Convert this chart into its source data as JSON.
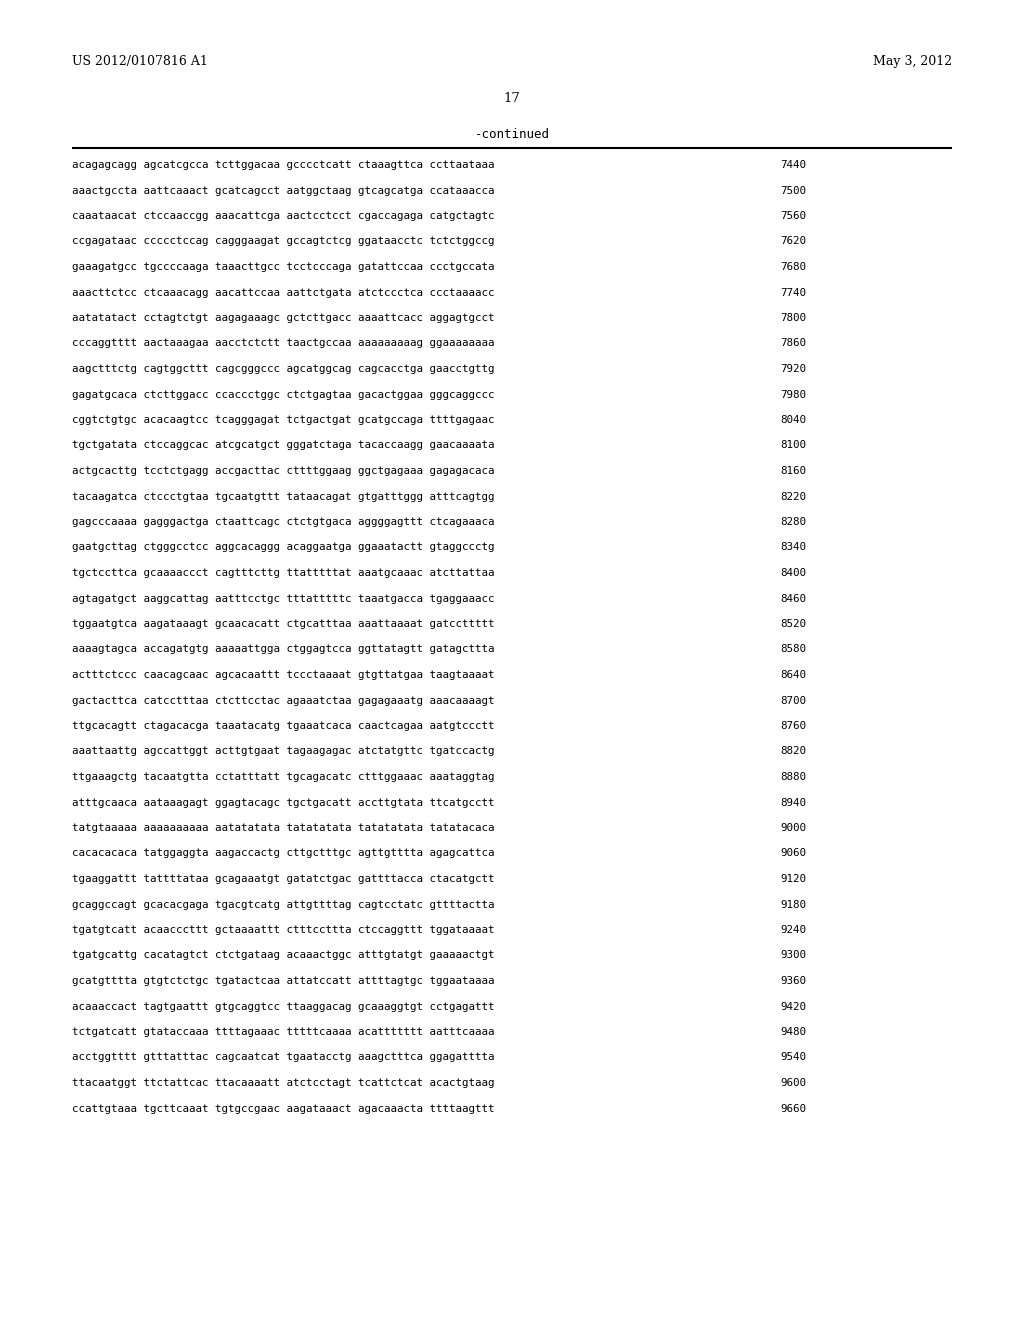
{
  "header_left": "US 2012/0107816 A1",
  "header_right": "May 3, 2012",
  "page_number": "17",
  "continued_label": "-continued",
  "background_color": "#ffffff",
  "text_color": "#000000",
  "mono_font_size": 7.8,
  "header_font_size": 9.0,
  "page_num_font_size": 9.5,
  "continued_font_size": 9.0,
  "lines": [
    [
      "acagagcagg agcatcgcca tcttggacaa gcccctcatt ctaaagttca ccttaataaa",
      "7440"
    ],
    [
      "aaactgccta aattcaaact gcatcagcct aatggctaag gtcagcatga ccataaacca",
      "7500"
    ],
    [
      "caaataacat ctccaaccgg aaacattcga aactcctcct cgaccagaga catgctagtc",
      "7560"
    ],
    [
      "ccgagataac ccccctccag cagggaagat gccagtctcg ggataacctc tctctggccg",
      "7620"
    ],
    [
      "gaaagatgcc tgccccaaga taaacttgcc tcctcccaga gatattccaa ccctgccata",
      "7680"
    ],
    [
      "aaacttctcc ctcaaacagg aacattccaa aattctgata atctccctca ccctaaaacc",
      "7740"
    ],
    [
      "aatatatact cctagtctgt aagagaaagc gctcttgacc aaaattcacc aggagtgcct",
      "7800"
    ],
    [
      "cccaggtttt aactaaagaa aacctctctt taactgccaa aaaaaaaaag ggaaaaaaaa",
      "7860"
    ],
    [
      "aagctttctg cagtggcttt cagcgggccc agcatggcag cagcacctga gaacctgttg",
      "7920"
    ],
    [
      "gagatgcaca ctcttggacc ccaccctggc ctctgagtaa gacactggaa gggcaggccc",
      "7980"
    ],
    [
      "cggtctgtgc acacaagtcc tcagggagat tctgactgat gcatgccaga ttttgagaac",
      "8040"
    ],
    [
      "tgctgatata ctccaggcac atcgcatgct gggatctaga tacaccaagg gaacaaaata",
      "8100"
    ],
    [
      "actgcacttg tcctctgagg accgacttac cttttggaag ggctgagaaa gagagacaca",
      "8160"
    ],
    [
      "tacaagatca ctccctgtaa tgcaatgttt tataacagat gtgatttggg atttcagtgg",
      "8220"
    ],
    [
      "gagcccaaaa gagggactga ctaattcagc ctctgtgaca aggggagttt ctcagaaaca",
      "8280"
    ],
    [
      "gaatgcttag ctgggcctcc aggcacaggg acaggaatga ggaaatactt gtaggccctg",
      "8340"
    ],
    [
      "tgctccttca gcaaaaccct cagtttcttg ttatttttat aaatgcaaac atcttattaa",
      "8400"
    ],
    [
      "agtagatgct aaggcattag aatttcctgc tttatttttc taaatgacca tgaggaaacc",
      "8460"
    ],
    [
      "tggaatgtca aagataaagt gcaacacatt ctgcatttaa aaattaaaat gatccttttt",
      "8520"
    ],
    [
      "aaaagtagca accagatgtg aaaaattgga ctggagtcca ggttatagtt gatagcttta",
      "8580"
    ],
    [
      "actttctccc caacagcaac agcacaattt tccctaaaat gtgttatgaa taagtaaaat",
      "8640"
    ],
    [
      "gactacttca catcctttaa ctcttcctac agaaatctaa gagagaaatg aaacaaaagt",
      "8700"
    ],
    [
      "ttgcacagtt ctagacacga taaatacatg tgaaatcaca caactcagaa aatgtccctt",
      "8760"
    ],
    [
      "aaattaattg agccattggt acttgtgaat tagaagagac atctatgttc tgatccactg",
      "8820"
    ],
    [
      "ttgaaagctg tacaatgtta cctatttatt tgcagacatc ctttggaaac aaataggtag",
      "8880"
    ],
    [
      "atttgcaaca aataaagagt ggagtacagc tgctgacatt accttgtata ttcatgcctt",
      "8940"
    ],
    [
      "tatgtaaaaa aaaaaaaaaa aatatatata tatatatata tatatatata tatatacaca",
      "9000"
    ],
    [
      "cacacacaca tatggaggta aagaccactg cttgctttgc agttgtttta agagcattca",
      "9060"
    ],
    [
      "tgaaggattt tattttataa gcagaaatgt gatatctgac gattttacca ctacatgctt",
      "9120"
    ],
    [
      "gcaggccagt gcacacgaga tgacgtcatg attgttttag cagtcctatc gttttactta",
      "9180"
    ],
    [
      "tgatgtcatt acaacccttt gctaaaattt ctttccttta ctccaggttt tggataaaat",
      "9240"
    ],
    [
      "tgatgcattg cacatagtct ctctgataag acaaactggc atttgtatgt gaaaaactgt",
      "9300"
    ],
    [
      "gcatgtttta gtgtctctgc tgatactcaa attatccatt attttagtgc tggaataaaa",
      "9360"
    ],
    [
      "acaaaccact tagtgaattt gtgcaggtcc ttaaggacag gcaaaggtgt cctgagattt",
      "9420"
    ],
    [
      "tctgatcatt gtataccaaa ttttagaaac tttttcaaaa acattttttt aatttcaaaa",
      "9480"
    ],
    [
      "acctggtttt gtttatttac cagcaatcat tgaatacctg aaagctttca ggagatttta",
      "9540"
    ],
    [
      "ttacaatggt ttctattcac ttacaaaatt atctcctagt tcattctcat acactgtaag",
      "9600"
    ],
    [
      "ccattgtaaa tgcttcaaat tgtgccgaac aagataaact agacaaacta ttttaagttt",
      "9660"
    ]
  ]
}
